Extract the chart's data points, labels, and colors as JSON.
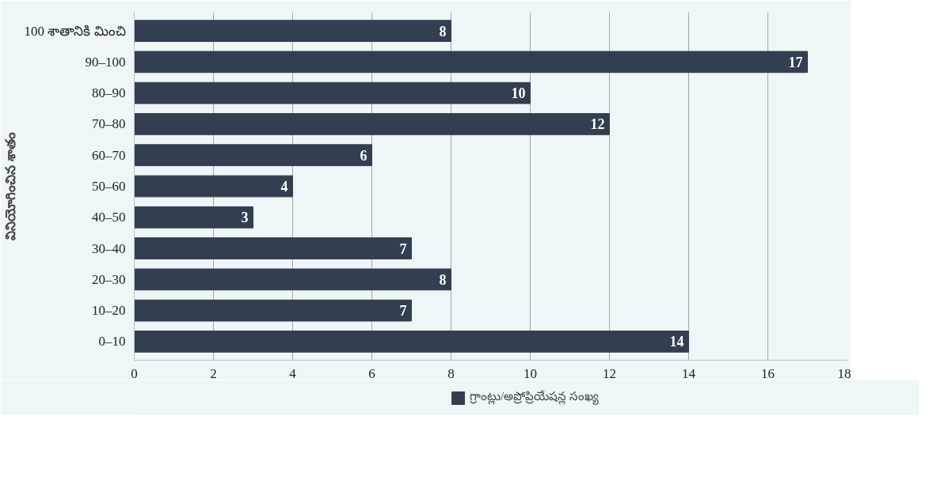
{
  "chart_data": {
    "type": "bar",
    "orientation": "horizontal",
    "ylabel": "వినియోగించిన శాతం",
    "categories": [
      "100 శాతానికి మించి",
      "90–100",
      "80–90",
      "70–80",
      "60–70",
      "50–60",
      "40–50",
      "30–40",
      "20–30",
      "10–20",
      "0–10"
    ],
    "series": [
      {
        "name": "గ్రాంట్లు/అప్రోప్రియేషన్ల సంఖ్య",
        "color": "#333f50",
        "values": [
          8,
          17,
          10,
          12,
          6,
          4,
          3,
          7,
          8,
          7,
          14
        ]
      }
    ],
    "xlim": [
      0,
      18
    ],
    "xticks": [
      0,
      2,
      4,
      6,
      8,
      10,
      12,
      14,
      16,
      18
    ],
    "grid": "x",
    "legend": "bottom",
    "data_labels": true
  }
}
